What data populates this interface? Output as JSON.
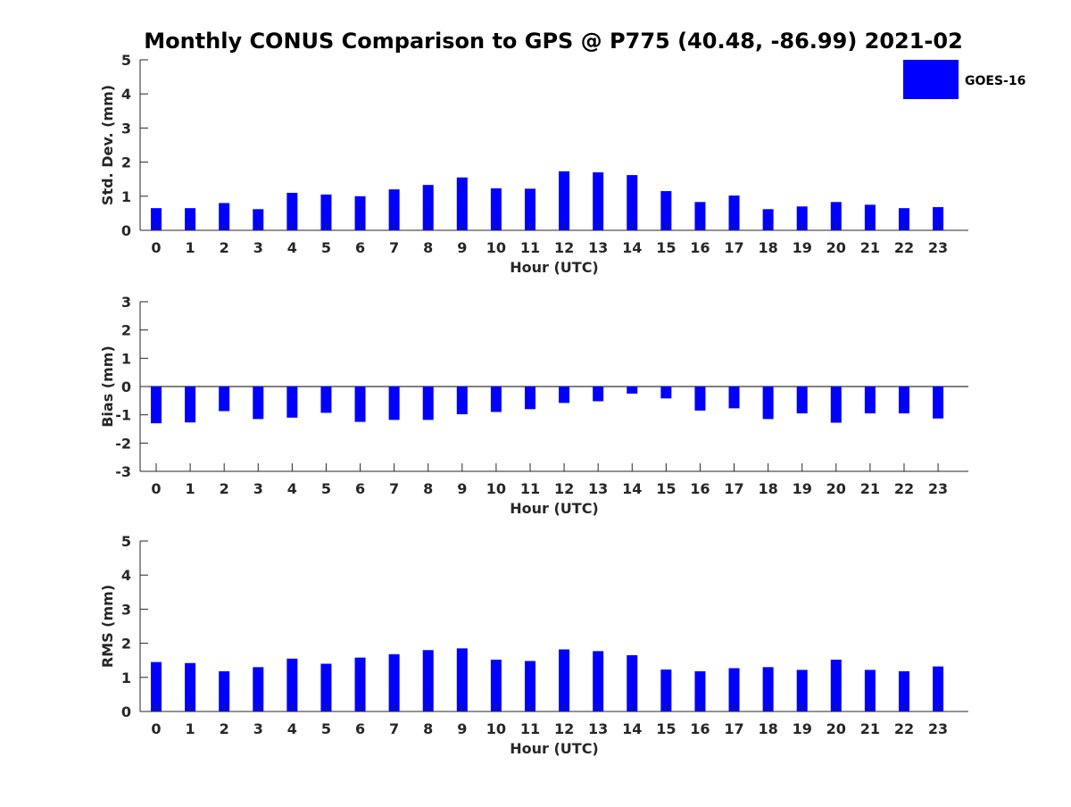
{
  "chart_data": {
    "title": "Monthly CONUS Comparison to GPS @ P775 (40.48, -86.99) 2021-02",
    "legend": {
      "label": "GOES-16",
      "color": "#0000ff",
      "placement": "top-right"
    },
    "bar_color": "#0000ff",
    "categories": [
      "0",
      "1",
      "2",
      "3",
      "4",
      "5",
      "6",
      "7",
      "8",
      "9",
      "10",
      "11",
      "12",
      "13",
      "14",
      "15",
      "16",
      "17",
      "18",
      "19",
      "20",
      "21",
      "22",
      "23"
    ],
    "panels": [
      {
        "type": "bar",
        "xlabel": "Hour (UTC)",
        "ylabel": "Std. Dev. (mm)",
        "ylim": [
          0,
          5
        ],
        "yticks": [
          0,
          1,
          2,
          3,
          4,
          5
        ],
        "values": [
          0.65,
          0.65,
          0.8,
          0.62,
          1.1,
          1.05,
          1.0,
          1.2,
          1.33,
          1.55,
          1.23,
          1.22,
          1.73,
          1.7,
          1.62,
          1.15,
          0.83,
          1.02,
          0.62,
          0.7,
          0.83,
          0.75,
          0.65,
          0.68
        ]
      },
      {
        "type": "bar",
        "xlabel": "Hour (UTC)",
        "ylabel": "Bias (mm)",
        "ylim": [
          -3,
          3
        ],
        "yticks": [
          -3,
          -2,
          -1,
          0,
          1,
          2,
          3
        ],
        "zero_line": true,
        "values": [
          -1.3,
          -1.27,
          -0.87,
          -1.15,
          -1.1,
          -0.93,
          -1.25,
          -1.18,
          -1.18,
          -0.98,
          -0.9,
          -0.8,
          -0.58,
          -0.52,
          -0.25,
          -0.42,
          -0.85,
          -0.77,
          -1.15,
          -0.95,
          -1.28,
          -0.95,
          -0.95,
          -1.13
        ]
      },
      {
        "type": "bar",
        "xlabel": "Hour (UTC)",
        "ylabel": "RMS (mm)",
        "ylim": [
          0,
          5
        ],
        "yticks": [
          0,
          1,
          2,
          3,
          4,
          5
        ],
        "values": [
          1.45,
          1.42,
          1.18,
          1.3,
          1.55,
          1.4,
          1.58,
          1.68,
          1.8,
          1.85,
          1.52,
          1.48,
          1.82,
          1.77,
          1.65,
          1.23,
          1.18,
          1.27,
          1.3,
          1.22,
          1.52,
          1.22,
          1.18,
          1.32
        ]
      }
    ]
  }
}
